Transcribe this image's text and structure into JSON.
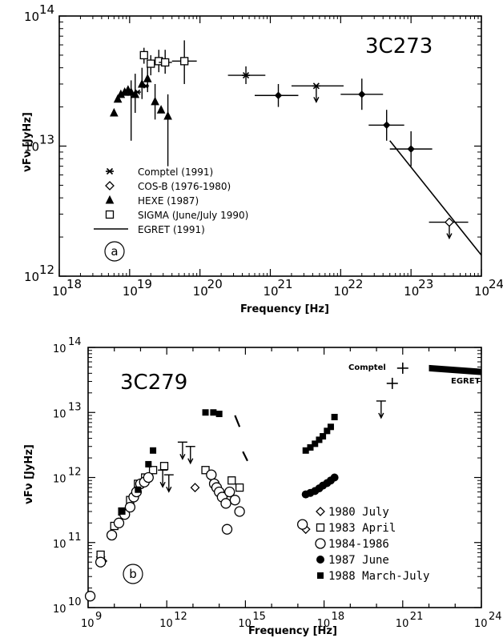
{
  "chart_data": [
    {
      "type": "scatter",
      "title": "3C273",
      "panel_label": "a",
      "xlabel": "Frequency [Hz]",
      "ylabel": "νFν [JyHz]",
      "x_scale": "log",
      "y_scale": "log",
      "xlim": [
        1e+18,
        1e+24
      ],
      "ylim": [
        1000000000000.0,
        100000000000000.0
      ],
      "x_tick_exponents": [
        18,
        19,
        20,
        21,
        22,
        23,
        24
      ],
      "y_tick_exponents": [
        12,
        13,
        14
      ],
      "legend_position": "bottom-left",
      "legend": [
        {
          "marker": "asterisk",
          "label": "Comptel (1991)"
        },
        {
          "marker": "diamond",
          "label": "COS-B (1976-1980)"
        },
        {
          "marker": "triangle",
          "label": "HEXE (1987)"
        },
        {
          "marker": "square",
          "label": "SIGMA (June/July 1990)"
        },
        {
          "marker": "line",
          "label": "EGRET (1991)"
        }
      ],
      "series": [
        {
          "name": "Comptel (1991)",
          "marker": "asterisk",
          "points": [
            {
              "x": 4.5e+20,
              "y": 35000000000000.0,
              "xerr": [
                2.5e+20,
                8.5e+20
              ],
              "yerr": [
                30000000000000.0,
                41000000000000.0
              ]
            },
            {
              "x": 4.5e+21,
              "y": 29000000000000.0,
              "xerr": [
                2e+21,
                1.1e+22
              ],
              "yerr": null,
              "upper_limit": true
            }
          ]
        },
        {
          "name": "COS-B (1976-1980)",
          "marker": "diamond",
          "points": [
            {
              "x": 3.5e+23,
              "y": 2600000000000.0,
              "xerr": [
                1.8e+23,
                6.5e+23
              ],
              "yerr": null,
              "upper_limit": true
            }
          ]
        },
        {
          "name": "HEXE (1987)",
          "marker": "triangle",
          "points": [
            {
              "x": 6e+18,
              "y": 18000000000000.0
            },
            {
              "x": 6.8e+18,
              "y": 23000000000000.0
            },
            {
              "x": 7.5e+18,
              "y": 25000000000000.0
            },
            {
              "x": 8.5e+18,
              "y": 26000000000000.0
            },
            {
              "x": 9.5e+18,
              "y": 27000000000000.0
            },
            {
              "x": 1.05e+19,
              "y": 26000000000000.0,
              "yerr": [
                11000000000000.0,
                32000000000000.0
              ]
            },
            {
              "x": 1.2e+19,
              "y": 25000000000000.0,
              "yerr": [
                18000000000000.0,
                36000000000000.0
              ]
            },
            {
              "x": 1.5e+19,
              "y": 30000000000000.0,
              "yerr": [
                23000000000000.0,
                40000000000000.0
              ]
            },
            {
              "x": 1.8e+19,
              "y": 33000000000000.0,
              "yerr": [
                26000000000000.0,
                45000000000000.0
              ]
            },
            {
              "x": 2.3e+19,
              "y": 22000000000000.0,
              "yerr": [
                16000000000000.0,
                30000000000000.0
              ]
            },
            {
              "x": 2.8e+19,
              "y": 19000000000000.0
            },
            {
              "x": 3.5e+19,
              "y": 17000000000000.0,
              "yerr": [
                7000000000000.0,
                25000000000000.0
              ]
            }
          ]
        },
        {
          "name": "SIGMA (June/July 1990)",
          "marker": "square",
          "points": [
            {
              "x": 1.6e+19,
              "y": 50000000000000.0,
              "yerr": [
                43000000000000.0,
                57000000000000.0
              ]
            },
            {
              "x": 2e+19,
              "y": 43000000000000.0,
              "yerr": [
                35000000000000.0,
                50000000000000.0
              ]
            },
            {
              "x": 2.6e+19,
              "y": 45000000000000.0,
              "yerr": [
                37000000000000.0,
                55000000000000.0
              ]
            },
            {
              "x": 3.2e+19,
              "y": 44000000000000.0,
              "xerr": [
                2.6e+19,
                4e+19
              ],
              "yerr": [
                36000000000000.0,
                55000000000000.0
              ]
            },
            {
              "x": 6e+19,
              "y": 45000000000000.0,
              "xerr": [
                4e+19,
                9e+19
              ],
              "yerr": [
                30000000000000.0,
                65000000000000.0
              ]
            }
          ]
        },
        {
          "name": "Comptel points",
          "marker": "asterisk-small",
          "points": [
            {
              "x": 1.3e+19,
              "y": 26000000000000.0
            },
            {
              "x": 1.7e+19,
              "y": 29000000000000.0
            }
          ]
        },
        {
          "name": "",
          "marker": "diamond-filled",
          "points": [
            {
              "x": 1.3e+21,
              "y": 24500000000000.0,
              "xerr": [
                6e+20,
                2.5e+21
              ],
              "yerr": [
                20000000000000.0,
                30000000000000.0
              ]
            },
            {
              "x": 2e+22,
              "y": 25000000000000.0,
              "xerr": [
                1e+22,
                4e+22
              ],
              "yerr": [
                19000000000000.0,
                33000000000000.0
              ]
            },
            {
              "x": 4.5e+22,
              "y": 14500000000000.0,
              "xerr": [
                2.5e+22,
                8e+22
              ],
              "yerr": [
                11000000000000.0,
                19000000000000.0
              ]
            },
            {
              "x": 1e+23,
              "y": 9500000000000.0,
              "xerr": [
                5e+22,
                2e+23
              ],
              "yerr": [
                7000000000000.0,
                13000000000000.0
              ]
            }
          ]
        },
        {
          "name": "EGRET (1991)",
          "marker": "line",
          "line": [
            {
              "x": 5e+22,
              "y": 11000000000000.0
            },
            {
              "x": 1e+24,
              "y": 1450000000000.0
            }
          ]
        }
      ]
    },
    {
      "type": "scatter",
      "title": "3C279",
      "panel_label": "b",
      "xlabel": "Frequency [Hz]",
      "ylabel": "νFν [JyHz]",
      "x_scale": "log",
      "y_scale": "log",
      "xlim": [
        1000000000.0,
        1e+24
      ],
      "ylim": [
        10000000000.0,
        100000000000000.0
      ],
      "x_tick_exponents": [
        9,
        12,
        15,
        18,
        21,
        24
      ],
      "y_tick_exponents": [
        10,
        11,
        12,
        13,
        14
      ],
      "annotations": [
        "Comptel",
        "EGRET"
      ],
      "legend_position": "bottom-right",
      "legend": [
        {
          "marker": "diamond",
          "label": "1980 July"
        },
        {
          "marker": "square",
          "label": "1983 April"
        },
        {
          "marker": "circle",
          "label": "1984-1986"
        },
        {
          "marker": "filled-circle",
          "label": "1987 June"
        },
        {
          "marker": "filled-square",
          "label": "1988 March-July"
        }
      ],
      "series": [
        {
          "name": "1980 July",
          "marker": "diamond",
          "points": [
            {
              "x": 3000000000.0,
              "y": 60000000000.0
            },
            {
              "x": 3600000000.0,
              "y": 52000000000.0
            },
            {
              "x": 2e+17,
              "y": 160000000000.0
            },
            {
              "x": 12000000000000.0,
              "y": 700000000000.0
            }
          ]
        },
        {
          "name": "1983 April",
          "marker": "square",
          "points": [
            {
              "x": 3000000000.0,
              "y": 65000000000.0
            },
            {
              "x": 10000000000.0,
              "y": 180000000000.0
            },
            {
              "x": 20000000000.0,
              "y": 300000000000.0
            },
            {
              "x": 40000000000.0,
              "y": 450000000000.0
            },
            {
              "x": 80000000000.0,
              "y": 800000000000.0
            },
            {
              "x": 150000000000.0,
              "y": 1000000000000.0
            },
            {
              "x": 300000000000.0,
              "y": 1300000000000.0
            },
            {
              "x": 800000000000.0,
              "y": 1500000000000.0
            },
            {
              "x": 30000000000000.0,
              "y": 1300000000000.0
            },
            {
              "x": 300000000000000.0,
              "y": 900000000000.0
            },
            {
              "x": 600000000000000.0,
              "y": 700000000000.0
            }
          ]
        },
        {
          "name": "1984-1986",
          "marker": "circle",
          "points": [
            {
              "x": 1200000000.0,
              "y": 15000000000.0
            },
            {
              "x": 3000000000.0,
              "y": 50000000000.0
            },
            {
              "x": 8000000000.0,
              "y": 130000000000.0
            },
            {
              "x": 15000000000.0,
              "y": 200000000000.0
            },
            {
              "x": 25000000000.0,
              "y": 270000000000.0
            },
            {
              "x": 40000000000.0,
              "y": 350000000000.0
            },
            {
              "x": 55000000000.0,
              "y": 500000000000.0
            },
            {
              "x": 70000000000.0,
              "y": 600000000000.0
            },
            {
              "x": 100000000000.0,
              "y": 800000000000.0
            },
            {
              "x": 140000000000.0,
              "y": 850000000000.0
            },
            {
              "x": 200000000000.0,
              "y": 1000000000000.0
            },
            {
              "x": 50000000000000.0,
              "y": 1100000000000.0
            },
            {
              "x": 65000000000000.0,
              "y": 800000000000.0
            },
            {
              "x": 80000000000000.0,
              "y": 700000000000.0
            },
            {
              "x": 100000000000000.0,
              "y": 600000000000.0
            },
            {
              "x": 130000000000000.0,
              "y": 500000000000.0
            },
            {
              "x": 180000000000000.0,
              "y": 400000000000.0
            },
            {
              "x": 250000000000000.0,
              "y": 600000000000.0
            },
            {
              "x": 400000000000000.0,
              "y": 450000000000.0
            },
            {
              "x": 600000000000000.0,
              "y": 300000000000.0
            },
            {
              "x": 200000000000000.0,
              "y": 160000000000.0
            },
            {
              "x": 1.5e+17,
              "y": 190000000000.0
            }
          ]
        },
        {
          "name": "1987 June",
          "marker": "filled-circle",
          "points": [
            {
              "x": 2e+17,
              "y": 550000000000.0
            },
            {
              "x": 3e+17,
              "y": 580000000000.0
            },
            {
              "x": 4.5e+17,
              "y": 620000000000.0
            },
            {
              "x": 6.5e+17,
              "y": 680000000000.0
            },
            {
              "x": 9e+17,
              "y": 750000000000.0
            },
            {
              "x": 1.3e+18,
              "y": 820000000000.0
            },
            {
              "x": 1.8e+18,
              "y": 900000000000.0
            },
            {
              "x": 2.5e+18,
              "y": 1000000000000.0
            }
          ]
        },
        {
          "name": "1988 March-July",
          "marker": "filled-square",
          "points": [
            {
              "x": 20000000000.0,
              "y": 300000000000.0
            },
            {
              "x": 80000000000.0,
              "y": 650000000000.0
            },
            {
              "x": 200000000000.0,
              "y": 1600000000000.0
            },
            {
              "x": 300000000000.0,
              "y": 2600000000000.0
            },
            {
              "x": 30000000000000.0,
              "y": 10000000000000.0
            },
            {
              "x": 60000000000000.0,
              "y": 10000000000000.0
            },
            {
              "x": 100000000000000.0,
              "y": 9500000000000.0
            },
            {
              "x": 2e+17,
              "y": 2600000000000.0
            },
            {
              "x": 3e+17,
              "y": 2900000000000.0
            },
            {
              "x": 4.5e+17,
              "y": 3300000000000.0
            },
            {
              "x": 6.5e+17,
              "y": 3800000000000.0
            },
            {
              "x": 9e+17,
              "y": 4300000000000.0
            },
            {
              "x": 1.3e+18,
              "y": 5200000000000.0
            },
            {
              "x": 1.8e+18,
              "y": 6000000000000.0
            },
            {
              "x": 2.5e+18,
              "y": 8500000000000.0
            }
          ]
        },
        {
          "name": "Comptel",
          "marker": "cross",
          "points": [
            {
              "x": 4e+20,
              "y": 28000000000000.0
            },
            {
              "x": 1e+21,
              "y": 48000000000000.0
            }
          ]
        },
        {
          "name": "upper limits",
          "marker": "upper-limit",
          "points": [
            {
              "x": 4000000000000.0,
              "y": 3500000000000.0
            },
            {
              "x": 8000000000000.0,
              "y": 3000000000000.0
            },
            {
              "x": 700000000000.0,
              "y": 1300000000000.0
            },
            {
              "x": 1200000000000.0,
              "y": 1100000000000.0
            },
            {
              "x": 1.5e+20,
              "y": 15000000000000.0
            }
          ]
        },
        {
          "name": "EGRET",
          "marker": "band",
          "line": [
            {
              "x": 1e+22,
              "y": 48000000000000.0
            },
            {
              "x": 1e+24,
              "y": 42000000000000.0
            }
          ]
        }
      ]
    }
  ]
}
